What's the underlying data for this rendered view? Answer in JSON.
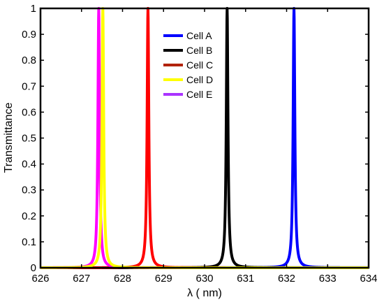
{
  "chart_data": {
    "type": "line",
    "title": "",
    "xlabel": "λ ( nm)",
    "ylabel": "Transmittance",
    "xlim": [
      626,
      634
    ],
    "ylim": [
      0,
      1
    ],
    "x_ticks": [
      626,
      627,
      628,
      629,
      630,
      631,
      632,
      633,
      634
    ],
    "y_ticks": [
      0,
      0.1,
      0.2,
      0.3,
      0.4,
      0.5,
      0.6,
      0.7,
      0.8,
      0.9,
      1
    ],
    "grid": false,
    "legend_position": "top-center",
    "series": [
      {
        "name": "Cell A",
        "legend_color": "#0000ff",
        "line_color": "#0000ff",
        "peak_wavelength": 632.18,
        "peak_transmittance": 1.0,
        "fwhm_nm": 0.05
      },
      {
        "name": "Cell B",
        "legend_color": "#000000",
        "line_color": "#000000",
        "peak_wavelength": 630.55,
        "peak_transmittance": 1.0,
        "fwhm_nm": 0.05
      },
      {
        "name": "Cell C",
        "legend_color": "#b22200",
        "line_color": "#ff0000",
        "peak_wavelength": 628.62,
        "peak_transmittance": 1.0,
        "fwhm_nm": 0.05
      },
      {
        "name": "Cell D",
        "legend_color": "#ffff00",
        "line_color": "#ffff00",
        "peak_wavelength": 627.52,
        "peak_transmittance": 1.0,
        "fwhm_nm": 0.05
      },
      {
        "name": "Cell E",
        "legend_color": "#aa33ff",
        "line_color": "#ff00ff",
        "peak_wavelength": 627.42,
        "peak_transmittance": 1.0,
        "fwhm_nm": 0.05
      }
    ]
  }
}
